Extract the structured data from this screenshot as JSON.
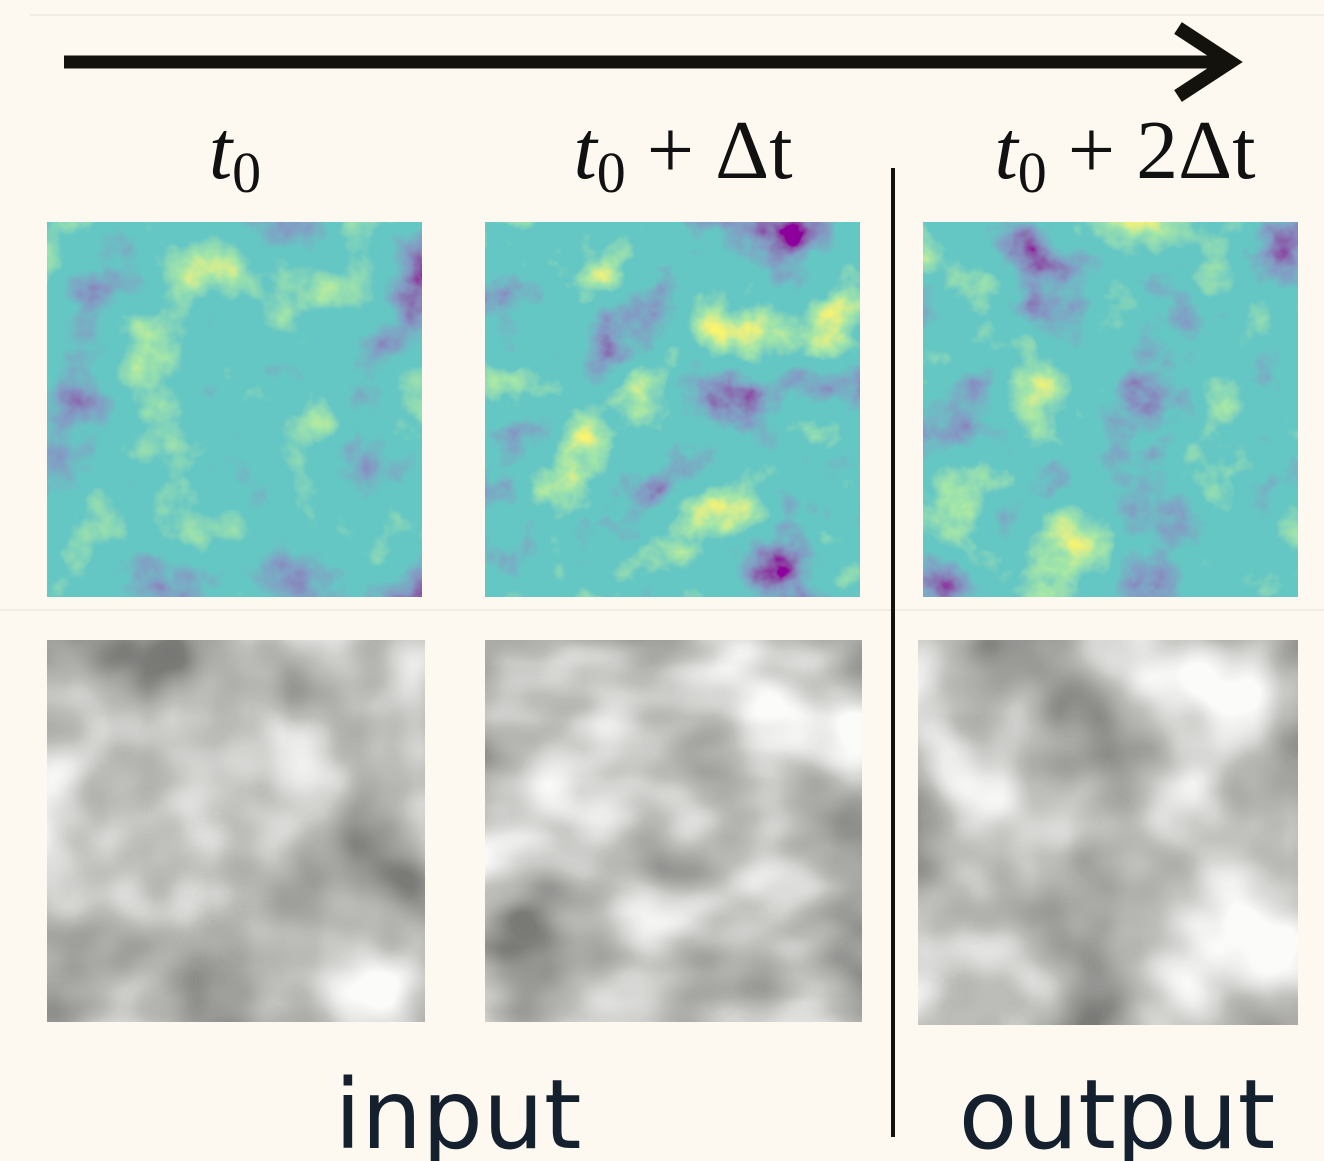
{
  "time_labels": [
    {
      "var": "t",
      "sub": "0"
    },
    {
      "var": "t",
      "sub": "0",
      "suffix": " + Δt"
    },
    {
      "var": "t",
      "sub": "0",
      "suffix": " + 2Δt"
    }
  ],
  "groups": {
    "input": "input",
    "output": "output"
  }
}
